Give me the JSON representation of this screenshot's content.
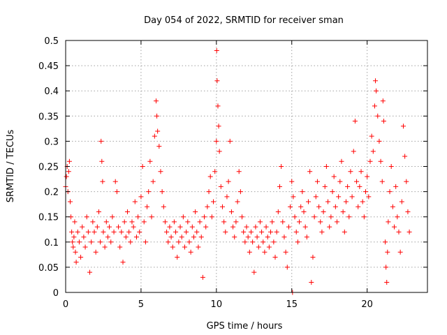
{
  "chart_data": {
    "type": "scatter",
    "title": "Day 054 of 2022, SRMTID for receiver sman",
    "xlabel": "GPS time / hours",
    "ylabel": "SRMTID / TECUs",
    "xlim": [
      0,
      24
    ],
    "ylim": [
      0,
      0.5
    ],
    "x_ticks": [
      0,
      5,
      10,
      15,
      20
    ],
    "x_tick_labels": [
      "0",
      "5",
      "10",
      "15",
      "20"
    ],
    "y_ticks": [
      0,
      0.05,
      0.1,
      0.15,
      0.2,
      0.25,
      0.3,
      0.35,
      0.4,
      0.45,
      0.5
    ],
    "y_tick_labels": [
      "0",
      "0.05",
      "0.1",
      "0.15",
      "0.2",
      "0.25",
      "0.3",
      "0.35",
      "0.4",
      "0.45",
      "0.5"
    ],
    "grid": true,
    "marker": "+",
    "series": [
      {
        "name": "SRMTID",
        "color": "#ff0000",
        "points": [
          [
            0.0,
            0.21
          ],
          [
            0.05,
            0.23
          ],
          [
            0.1,
            0.25
          ],
          [
            0.15,
            0.2
          ],
          [
            0.2,
            0.24
          ],
          [
            0.25,
            0.26
          ],
          [
            0.3,
            0.18
          ],
          [
            0.35,
            0.15
          ],
          [
            0.4,
            0.12
          ],
          [
            0.45,
            0.1
          ],
          [
            0.5,
            0.09
          ],
          [
            0.55,
            0.11
          ],
          [
            0.6,
            0.14
          ],
          [
            0.65,
            0.08
          ],
          [
            0.7,
            0.06
          ],
          [
            0.8,
            0.12
          ],
          [
            0.9,
            0.1
          ],
          [
            1.0,
            0.07
          ],
          [
            1.1,
            0.13
          ],
          [
            1.2,
            0.11
          ],
          [
            1.3,
            0.09
          ],
          [
            1.4,
            0.15
          ],
          [
            1.5,
            0.12
          ],
          [
            1.6,
            0.04
          ],
          [
            1.7,
            0.1
          ],
          [
            1.8,
            0.14
          ],
          [
            1.9,
            0.12
          ],
          [
            2.0,
            0.08
          ],
          [
            2.1,
            0.13
          ],
          [
            2.2,
            0.16
          ],
          [
            2.3,
            0.1
          ],
          [
            2.35,
            0.3
          ],
          [
            2.4,
            0.26
          ],
          [
            2.45,
            0.22
          ],
          [
            2.5,
            0.12
          ],
          [
            2.6,
            0.09
          ],
          [
            2.7,
            0.14
          ],
          [
            2.8,
            0.11
          ],
          [
            2.9,
            0.13
          ],
          [
            3.0,
            0.1
          ],
          [
            3.1,
            0.15
          ],
          [
            3.2,
            0.12
          ],
          [
            3.3,
            0.22
          ],
          [
            3.4,
            0.2
          ],
          [
            3.5,
            0.13
          ],
          [
            3.6,
            0.09
          ],
          [
            3.7,
            0.12
          ],
          [
            3.8,
            0.06
          ],
          [
            3.9,
            0.14
          ],
          [
            4.0,
            0.11
          ],
          [
            4.1,
            0.16
          ],
          [
            4.2,
            0.12
          ],
          [
            4.3,
            0.1
          ],
          [
            4.4,
            0.14
          ],
          [
            4.5,
            0.13
          ],
          [
            4.6,
            0.18
          ],
          [
            4.7,
            0.11
          ],
          [
            4.8,
            0.15
          ],
          [
            4.9,
            0.12
          ],
          [
            5.0,
            0.19
          ],
          [
            5.1,
            0.25
          ],
          [
            5.2,
            0.14
          ],
          [
            5.3,
            0.1
          ],
          [
            5.4,
            0.17
          ],
          [
            5.5,
            0.2
          ],
          [
            5.6,
            0.26
          ],
          [
            5.7,
            0.15
          ],
          [
            5.8,
            0.22
          ],
          [
            5.9,
            0.31
          ],
          [
            6.0,
            0.38
          ],
          [
            6.05,
            0.35
          ],
          [
            6.1,
            0.32
          ],
          [
            6.2,
            0.29
          ],
          [
            6.3,
            0.24
          ],
          [
            6.4,
            0.2
          ],
          [
            6.5,
            0.17
          ],
          [
            6.6,
            0.14
          ],
          [
            6.7,
            0.12
          ],
          [
            6.8,
            0.1
          ],
          [
            6.9,
            0.13
          ],
          [
            7.0,
            0.11
          ],
          [
            7.1,
            0.09
          ],
          [
            7.2,
            0.14
          ],
          [
            7.3,
            0.12
          ],
          [
            7.4,
            0.07
          ],
          [
            7.5,
            0.1
          ],
          [
            7.6,
            0.13
          ],
          [
            7.7,
            0.11
          ],
          [
            7.8,
            0.15
          ],
          [
            7.9,
            0.09
          ],
          [
            8.0,
            0.12
          ],
          [
            8.1,
            0.14
          ],
          [
            8.2,
            0.1
          ],
          [
            8.3,
            0.08
          ],
          [
            8.4,
            0.13
          ],
          [
            8.5,
            0.11
          ],
          [
            8.6,
            0.16
          ],
          [
            8.7,
            0.12
          ],
          [
            8.8,
            0.09
          ],
          [
            8.9,
            0.14
          ],
          [
            9.0,
            0.11
          ],
          [
            9.1,
            0.03
          ],
          [
            9.2,
            0.15
          ],
          [
            9.3,
            0.13
          ],
          [
            9.4,
            0.17
          ],
          [
            9.5,
            0.2
          ],
          [
            9.6,
            0.23
          ],
          [
            9.7,
            0.15
          ],
          [
            9.8,
            0.18
          ],
          [
            9.9,
            0.24
          ],
          [
            10.0,
            0.3
          ],
          [
            10.02,
            0.48
          ],
          [
            10.05,
            0.42
          ],
          [
            10.1,
            0.37
          ],
          [
            10.15,
            0.33
          ],
          [
            10.2,
            0.28
          ],
          [
            10.3,
            0.21
          ],
          [
            10.4,
            0.17
          ],
          [
            10.5,
            0.14
          ],
          [
            10.6,
            0.12
          ],
          [
            10.7,
            0.19
          ],
          [
            10.8,
            0.22
          ],
          [
            10.9,
            0.3
          ],
          [
            11.0,
            0.16
          ],
          [
            11.1,
            0.13
          ],
          [
            11.2,
            0.11
          ],
          [
            11.3,
            0.14
          ],
          [
            11.4,
            0.18
          ],
          [
            11.5,
            0.24
          ],
          [
            11.6,
            0.2
          ],
          [
            11.7,
            0.15
          ],
          [
            11.8,
            0.12
          ],
          [
            11.9,
            0.1
          ],
          [
            12.0,
            0.13
          ],
          [
            12.1,
            0.11
          ],
          [
            12.2,
            0.08
          ],
          [
            12.3,
            0.12
          ],
          [
            12.4,
            0.1
          ],
          [
            12.5,
            0.04
          ],
          [
            12.6,
            0.13
          ],
          [
            12.7,
            0.11
          ],
          [
            12.8,
            0.09
          ],
          [
            12.9,
            0.14
          ],
          [
            13.0,
            0.12
          ],
          [
            13.1,
            0.1
          ],
          [
            13.2,
            0.08
          ],
          [
            13.3,
            0.13
          ],
          [
            13.4,
            0.11
          ],
          [
            13.5,
            0.09
          ],
          [
            13.6,
            0.12
          ],
          [
            13.7,
            0.14
          ],
          [
            13.8,
            0.1
          ],
          [
            13.9,
            0.07
          ],
          [
            14.0,
            0.12
          ],
          [
            14.1,
            0.16
          ],
          [
            14.2,
            0.21
          ],
          [
            14.3,
            0.25
          ],
          [
            14.4,
            0.14
          ],
          [
            14.5,
            0.11
          ],
          [
            14.6,
            0.08
          ],
          [
            14.7,
            0.05
          ],
          [
            14.8,
            0.13
          ],
          [
            14.9,
            0.17
          ],
          [
            15.0,
            0.22
          ],
          [
            15.05,
            0.0
          ],
          [
            15.1,
            0.19
          ],
          [
            15.2,
            0.15
          ],
          [
            15.3,
            0.12
          ],
          [
            15.4,
            0.1
          ],
          [
            15.5,
            0.14
          ],
          [
            15.6,
            0.17
          ],
          [
            15.7,
            0.2
          ],
          [
            15.8,
            0.16
          ],
          [
            15.9,
            0.13
          ],
          [
            16.0,
            0.11
          ],
          [
            16.1,
            0.18
          ],
          [
            16.2,
            0.24
          ],
          [
            16.3,
            0.02
          ],
          [
            16.4,
            0.07
          ],
          [
            16.5,
            0.15
          ],
          [
            16.6,
            0.19
          ],
          [
            16.7,
            0.22
          ],
          [
            16.8,
            0.17
          ],
          [
            16.9,
            0.14
          ],
          [
            17.0,
            0.12
          ],
          [
            17.1,
            0.16
          ],
          [
            17.2,
            0.21
          ],
          [
            17.3,
            0.25
          ],
          [
            17.4,
            0.18
          ],
          [
            17.5,
            0.13
          ],
          [
            17.6,
            0.15
          ],
          [
            17.7,
            0.2
          ],
          [
            17.8,
            0.23
          ],
          [
            17.9,
            0.17
          ],
          [
            18.0,
            0.14
          ],
          [
            18.1,
            0.19
          ],
          [
            18.2,
            0.22
          ],
          [
            18.3,
            0.26
          ],
          [
            18.4,
            0.16
          ],
          [
            18.5,
            0.12
          ],
          [
            18.6,
            0.18
          ],
          [
            18.7,
            0.21
          ],
          [
            18.8,
            0.15
          ],
          [
            18.9,
            0.24
          ],
          [
            19.0,
            0.19
          ],
          [
            19.1,
            0.28
          ],
          [
            19.2,
            0.34
          ],
          [
            19.3,
            0.22
          ],
          [
            19.4,
            0.17
          ],
          [
            19.5,
            0.21
          ],
          [
            19.6,
            0.24
          ],
          [
            19.7,
            0.18
          ],
          [
            19.8,
            0.15
          ],
          [
            19.9,
            0.2
          ],
          [
            20.0,
            0.23
          ],
          [
            20.1,
            0.19
          ],
          [
            20.2,
            0.26
          ],
          [
            20.3,
            0.31
          ],
          [
            20.4,
            0.28
          ],
          [
            20.5,
            0.37
          ],
          [
            20.55,
            0.42
          ],
          [
            20.6,
            0.4
          ],
          [
            20.7,
            0.35
          ],
          [
            20.8,
            0.3
          ],
          [
            20.9,
            0.26
          ],
          [
            21.0,
            0.22
          ],
          [
            21.05,
            0.38
          ],
          [
            21.1,
            0.34
          ],
          [
            21.2,
            0.1
          ],
          [
            21.25,
            0.05
          ],
          [
            21.3,
            0.02
          ],
          [
            21.35,
            0.08
          ],
          [
            21.4,
            0.14
          ],
          [
            21.5,
            0.2
          ],
          [
            21.6,
            0.25
          ],
          [
            21.7,
            0.17
          ],
          [
            21.8,
            0.13
          ],
          [
            21.9,
            0.21
          ],
          [
            22.0,
            0.15
          ],
          [
            22.1,
            0.12
          ],
          [
            22.2,
            0.08
          ],
          [
            22.3,
            0.18
          ],
          [
            22.4,
            0.33
          ],
          [
            22.5,
            0.27
          ],
          [
            22.6,
            0.22
          ],
          [
            22.7,
            0.16
          ],
          [
            22.8,
            0.12
          ]
        ]
      }
    ]
  }
}
